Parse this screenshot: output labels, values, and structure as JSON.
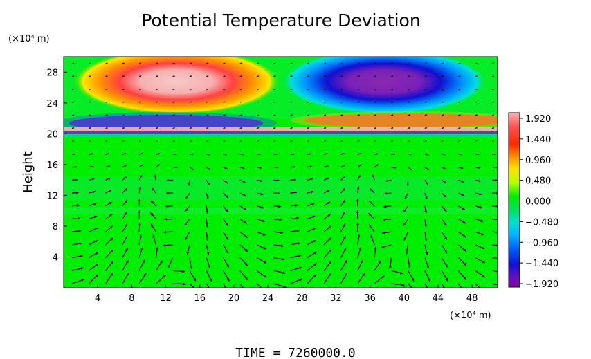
{
  "chart_data": {
    "type": "heatmap",
    "title": "Potential Temperature Deviation",
    "ylabel": "Height",
    "xlabel": "",
    "x_unit": "(×10⁴ m)",
    "y_unit": "(×10⁴ m)",
    "x_ticks": [
      "4",
      "8",
      "12",
      "16",
      "20",
      "24",
      "28",
      "32",
      "36",
      "40",
      "44",
      "48"
    ],
    "y_ticks": [
      "4",
      "8",
      "12",
      "16",
      "20",
      "24",
      "28"
    ],
    "xlim": [
      0,
      51
    ],
    "ylim": [
      0,
      30
    ],
    "colorbar": {
      "ticks": [
        "1.920",
        "1.440",
        "0.960",
        "0.480",
        "0.000",
        "−0.480",
        "−0.960",
        "−1.440",
        "−1.920"
      ],
      "range": [
        -1.92,
        1.92
      ]
    },
    "overlay": "velocity vectors",
    "footer": "TIME = 7260000.0"
  }
}
